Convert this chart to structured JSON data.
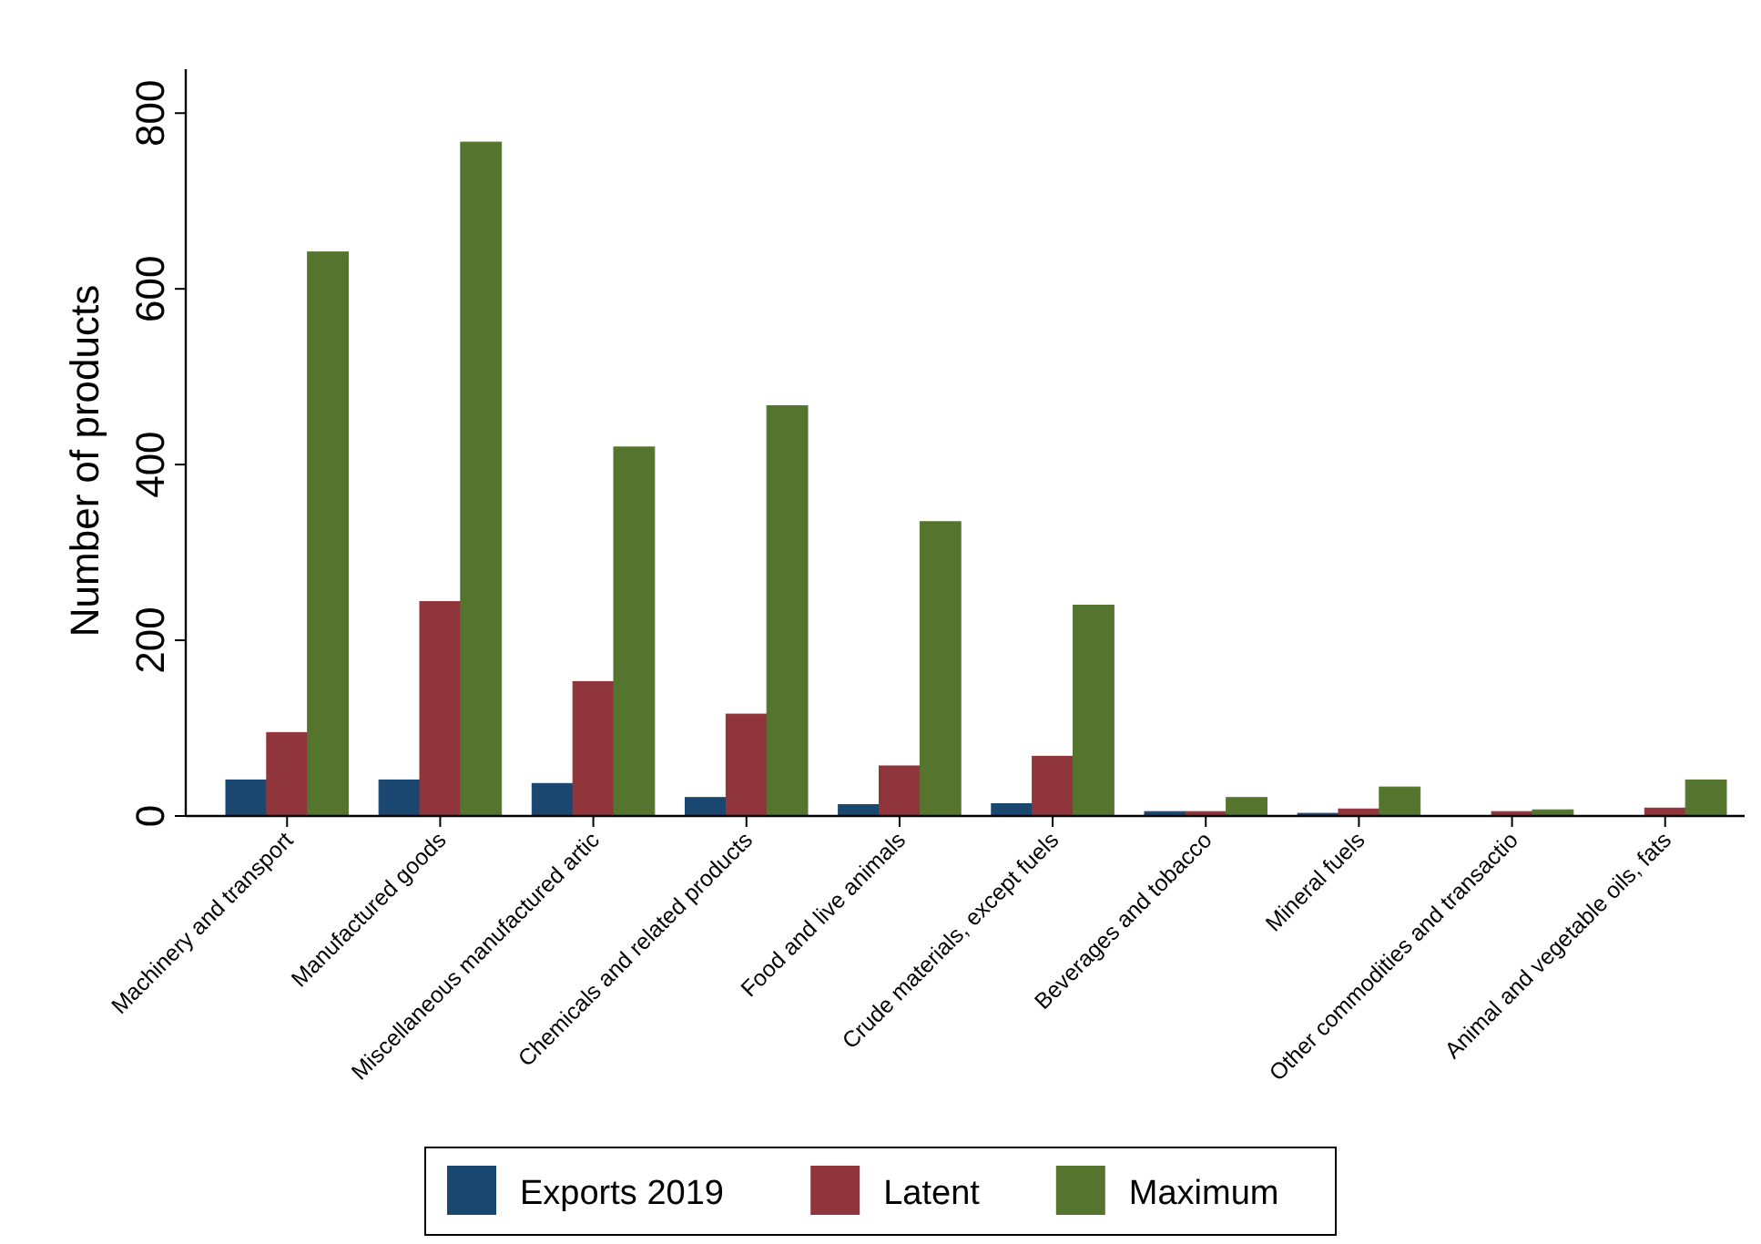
{
  "chart_data": {
    "type": "bar",
    "ylabel": "Number of products",
    "categories": [
      "Machinery and transport",
      "Manufactured goods",
      "Miscellaneous manufactured artic",
      "Chemicals and related products",
      "Food and live animals",
      "Crude materials, except fuels",
      "Beverages and tobacco",
      "Mineral fuels",
      "Other commodities and transactio",
      "Animal and vegetable oils, fats"
    ],
    "series": [
      {
        "name": "Exports 2019",
        "color": "#1a476f",
        "values": [
          41,
          41,
          37,
          21,
          13,
          14,
          5,
          3,
          0,
          0
        ]
      },
      {
        "name": "Latent",
        "color": "#90353b",
        "values": [
          95,
          244,
          153,
          116,
          57,
          68,
          5,
          8,
          5,
          9
        ]
      },
      {
        "name": "Maximum",
        "color": "#55752f",
        "values": [
          642,
          767,
          420,
          467,
          335,
          240,
          21,
          33,
          7,
          41
        ]
      }
    ],
    "ylim": [
      0,
      850
    ],
    "yticks": [
      0,
      200,
      400,
      600,
      800
    ],
    "grid": false,
    "legend": "bottom"
  }
}
